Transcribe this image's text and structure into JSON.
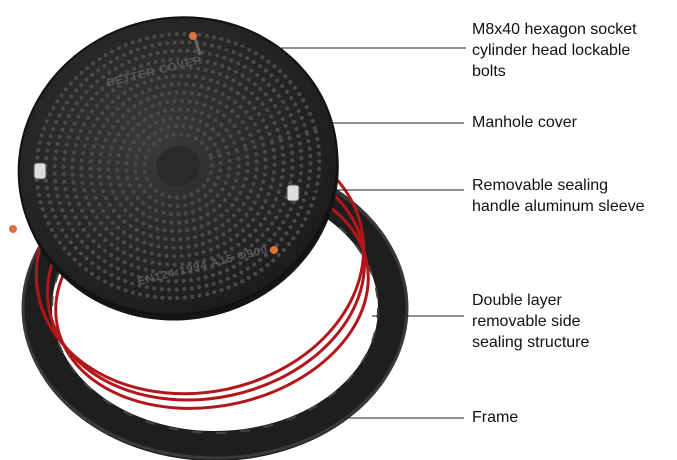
{
  "cover_text": [
    "BETTER COVER",
    "EN124:1994 A15 Φ900"
  ],
  "labels": [
    {
      "lines": [
        "M8x40 hexagon socket",
        "cylinder head lockable",
        "bolts"
      ]
    },
    {
      "lines": [
        "Manhole cover"
      ]
    },
    {
      "lines": [
        "Removable sealing",
        "handle aluminum sleeve"
      ]
    },
    {
      "lines": [
        "Double layer",
        "removable side",
        "sealing structure"
      ]
    },
    {
      "lines": [
        "Frame"
      ]
    }
  ]
}
